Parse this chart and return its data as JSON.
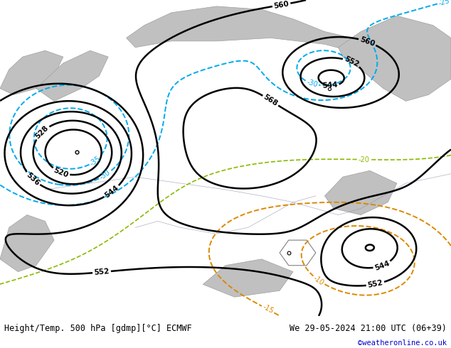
{
  "title_left": "Height/Temp. 500 hPa [gdmp][°C] ECMWF",
  "title_right": "We 29-05-2024 21:00 UTC (06+39)",
  "credit": "©weatheronline.co.uk",
  "bg_color": "#b8de90",
  "fig_width": 6.34,
  "fig_height": 4.9,
  "dpi": 100,
  "geo_levels": [
    520,
    528,
    536,
    544,
    552,
    560,
    568
  ],
  "temp_cold_levels": [
    -35,
    -30,
    -25
  ],
  "temp_mid_levels": [
    -20
  ],
  "temp_warm_levels": [
    -15,
    -10
  ]
}
